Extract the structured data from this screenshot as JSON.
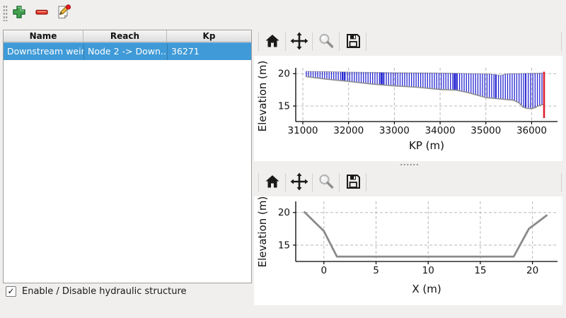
{
  "table": {
    "columns": [
      "Name",
      "Reach",
      "Kp"
    ],
    "rows": [
      {
        "name": "Downstream weir",
        "reach": "Node 2 -> Down...",
        "kp": "36271",
        "selected": true
      }
    ]
  },
  "checkbox": {
    "label": "Enable / Disable hydraulic structure",
    "checked": true
  },
  "colors": {
    "selection_blue": "#3f9ad7",
    "bar_blue": "#2525d2",
    "marker_red": "#dd2030",
    "profile_gray": "#8a8a8a",
    "bed_gray": "#8f8f8f",
    "bank_gray": "#a8a8a8",
    "grid_gray": "#b8b8b8",
    "add_green": "#44a04c",
    "remove_red": "#e8392a"
  },
  "chart_data": [
    {
      "type": "area-vlines",
      "xlabel": "KP (m)",
      "ylabel": "Elevation (m)",
      "xlim": [
        30845,
        36565
      ],
      "ylim": [
        12.6,
        20.9
      ],
      "xticks": [
        31000,
        32000,
        33000,
        34000,
        35000,
        36000
      ],
      "yticks": [
        15,
        20
      ],
      "grid": true,
      "legend": "none",
      "bank_profile": [
        [
          31075,
          20.35
        ],
        [
          32000,
          20.25
        ],
        [
          33000,
          20.15
        ],
        [
          34000,
          20.1
        ],
        [
          34800,
          20.0
        ],
        [
          35100,
          19.95
        ],
        [
          35250,
          19.8
        ],
        [
          35320,
          19.7
        ],
        [
          35400,
          19.9
        ],
        [
          35500,
          20.0
        ],
        [
          36000,
          20.05
        ],
        [
          36271,
          20.1
        ]
      ],
      "bed_profile": [
        [
          31075,
          19.55
        ],
        [
          31500,
          19.15
        ],
        [
          32000,
          18.8
        ],
        [
          32500,
          18.4
        ],
        [
          33000,
          18.1
        ],
        [
          33500,
          17.9
        ],
        [
          34000,
          17.55
        ],
        [
          34350,
          17.45
        ],
        [
          34600,
          17.1
        ],
        [
          35000,
          16.3
        ],
        [
          35300,
          16.1
        ],
        [
          35600,
          15.9
        ],
        [
          35720,
          15.5
        ],
        [
          35820,
          14.8
        ],
        [
          35900,
          14.62
        ],
        [
          36000,
          14.6
        ],
        [
          36080,
          14.75
        ],
        [
          36150,
          15.05
        ],
        [
          36271,
          15.3
        ]
      ],
      "bars_from": 31075,
      "bars_to": 36265,
      "bar_spacing_m": 50,
      "extra_bars": [
        31860,
        31905,
        32705,
        32750,
        34305,
        34350,
        35210,
        35865
      ],
      "structure_marker": {
        "kp": 36271,
        "elev_bottom": 13.15,
        "elev_top": 20.3
      }
    },
    {
      "type": "line",
      "xlabel": "X (m)",
      "ylabel": "Elevation (m)",
      "xlim": [
        -2.7,
        22.4
      ],
      "ylim": [
        12.5,
        21.7
      ],
      "xticks": [
        0,
        5,
        10,
        15,
        20
      ],
      "yticks": [
        15,
        20
      ],
      "grid": true,
      "legend": "none",
      "series": [
        {
          "name": "cross-section-profile",
          "points": [
            [
              -1.85,
              20.05
            ],
            [
              0,
              17.15
            ],
            [
              1.25,
              13.25
            ],
            [
              18.2,
              13.25
            ],
            [
              19.65,
              17.5
            ],
            [
              21.35,
              19.55
            ]
          ]
        }
      ]
    }
  ]
}
